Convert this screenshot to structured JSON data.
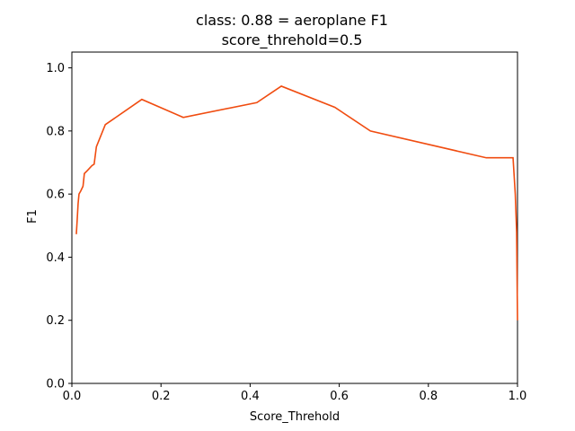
{
  "chart_data": {
    "type": "line",
    "title": "class: 0.88 = aeroplane F1",
    "subtitle": "score_threhold=0.5",
    "xlabel": "Score_Threhold",
    "ylabel": "F1",
    "xlim": [
      0,
      1
    ],
    "ylim": [
      0,
      1.05
    ],
    "xticks": [
      0.0,
      0.2,
      0.4,
      0.6,
      0.8,
      1.0
    ],
    "xtick_labels": [
      "0.0",
      "0.2",
      "0.4",
      "0.6",
      "0.8",
      "1.0"
    ],
    "yticks": [
      0.0,
      0.2,
      0.4,
      0.6,
      0.8,
      1.0
    ],
    "ytick_labels": [
      "0.0",
      "0.2",
      "0.4",
      "0.6",
      "0.8",
      "1.0"
    ],
    "grid": false,
    "line_color": "#f04c10",
    "series": [
      {
        "x": [
          0.01,
          0.012,
          0.014,
          0.016,
          0.02,
          0.025,
          0.028,
          0.035,
          0.045,
          0.05,
          0.055,
          0.075,
          0.157,
          0.25,
          0.415,
          0.47,
          0.59,
          0.67,
          0.93,
          0.99,
          0.995,
          0.998,
          1.0
        ],
        "y": [
          0.473,
          0.52,
          0.57,
          0.6,
          0.61,
          0.625,
          0.665,
          0.675,
          0.69,
          0.695,
          0.75,
          0.82,
          0.9,
          0.843,
          0.89,
          0.942,
          0.875,
          0.8,
          0.715,
          0.715,
          0.6,
          0.48,
          0.2
        ]
      }
    ]
  }
}
